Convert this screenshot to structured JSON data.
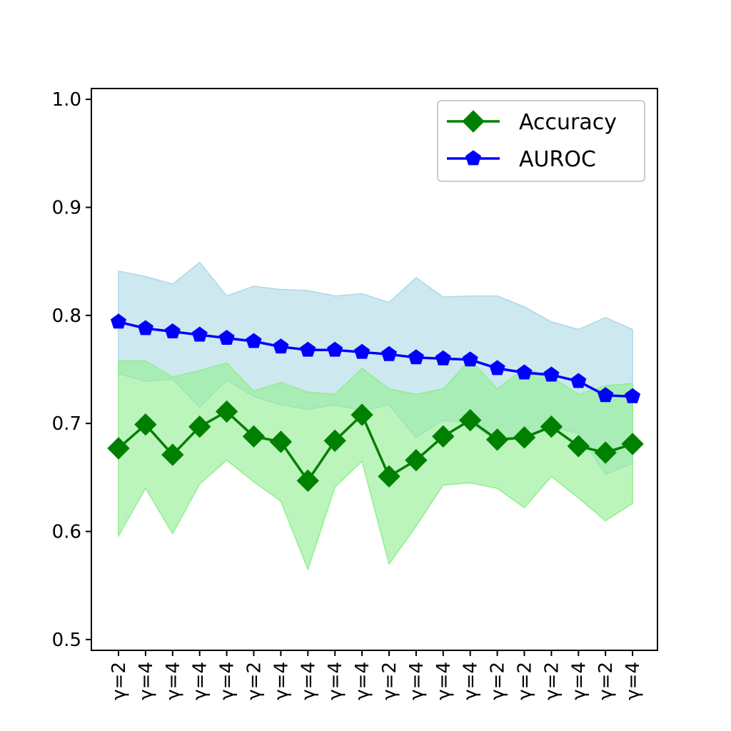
{
  "chart_data": {
    "type": "line",
    "title": "",
    "xlabel": "",
    "ylabel": "",
    "ylim": [
      0.49,
      1.01
    ],
    "yticks": [
      0.5,
      0.6,
      0.7,
      0.8,
      0.9,
      1.0
    ],
    "ytick_labels": [
      "0.5",
      "0.6",
      "0.7",
      "0.8",
      "0.9",
      "1.0"
    ],
    "grid": false,
    "legend_position": "top-right",
    "categories": [
      "γ=2",
      "γ=4",
      "γ=4",
      "γ=4",
      "γ=4",
      "γ=2",
      "γ=4",
      "γ=4",
      "γ=4",
      "γ=4",
      "γ=2",
      "γ=4",
      "γ=4",
      "γ=4",
      "γ=2",
      "γ=2",
      "γ=2",
      "γ=4",
      "γ=2",
      "γ=4"
    ],
    "series": [
      {
        "name": "Accuracy",
        "color": "#008000",
        "band_color": "#90ee90",
        "marker": "diamond",
        "values": [
          0.677,
          0.699,
          0.671,
          0.697,
          0.711,
          0.688,
          0.683,
          0.647,
          0.684,
          0.708,
          0.651,
          0.666,
          0.688,
          0.703,
          0.685,
          0.687,
          0.697,
          0.679,
          0.673,
          0.681
        ],
        "upper": [
          0.758,
          0.758,
          0.743,
          0.749,
          0.756,
          0.73,
          0.738,
          0.729,
          0.727,
          0.751,
          0.732,
          0.727,
          0.732,
          0.759,
          0.732,
          0.751,
          0.743,
          0.727,
          0.735,
          0.737
        ],
        "lower": [
          0.596,
          0.64,
          0.598,
          0.644,
          0.666,
          0.646,
          0.628,
          0.565,
          0.641,
          0.665,
          0.57,
          0.605,
          0.643,
          0.645,
          0.64,
          0.622,
          0.651,
          0.631,
          0.61,
          0.626
        ]
      },
      {
        "name": "AUROC",
        "color": "#0000ff",
        "band_color": "#add8e6",
        "marker": "pentagon",
        "values": [
          0.794,
          0.788,
          0.785,
          0.782,
          0.779,
          0.776,
          0.771,
          0.768,
          0.768,
          0.766,
          0.764,
          0.761,
          0.76,
          0.759,
          0.751,
          0.747,
          0.745,
          0.739,
          0.726,
          0.725
        ],
        "upper": [
          0.841,
          0.836,
          0.829,
          0.849,
          0.818,
          0.827,
          0.824,
          0.823,
          0.818,
          0.82,
          0.812,
          0.835,
          0.817,
          0.818,
          0.818,
          0.808,
          0.794,
          0.787,
          0.798,
          0.787
        ],
        "lower": [
          0.746,
          0.739,
          0.741,
          0.715,
          0.74,
          0.725,
          0.717,
          0.713,
          0.717,
          0.712,
          0.717,
          0.687,
          0.703,
          0.7,
          0.684,
          0.686,
          0.696,
          0.691,
          0.653,
          0.663
        ]
      }
    ]
  }
}
